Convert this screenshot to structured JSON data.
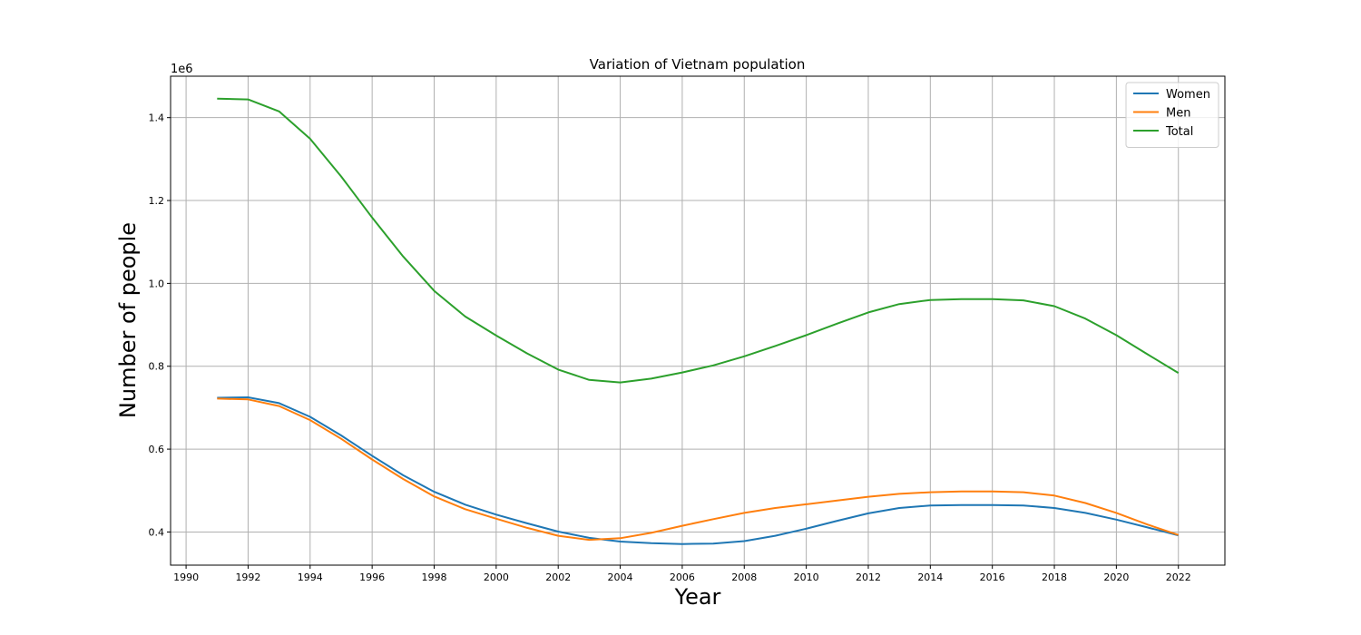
{
  "chart_data": {
    "type": "line",
    "title": "Variation of Vietnam population",
    "xlabel": "Year",
    "ylabel": "Number of people",
    "y_offset_label": "1e6",
    "xlim": [
      1989.5,
      2023.5
    ],
    "ylim": [
      320000,
      1500000
    ],
    "xticks": [
      1990,
      1992,
      1994,
      1996,
      1998,
      2000,
      2002,
      2004,
      2006,
      2008,
      2010,
      2012,
      2014,
      2016,
      2018,
      2020,
      2022
    ],
    "xtick_labels": [
      "1990",
      "1992",
      "1994",
      "1996",
      "1998",
      "2000",
      "2002",
      "2004",
      "2006",
      "2008",
      "2010",
      "2012",
      "2014",
      "2016",
      "2018",
      "2020",
      "2022"
    ],
    "yticks": [
      400000,
      600000,
      800000,
      1000000,
      1200000,
      1400000
    ],
    "ytick_labels": [
      "0.4",
      "0.6",
      "0.8",
      "1.0",
      "1.2",
      "1.4"
    ],
    "grid": true,
    "legend_position": "top-right",
    "x": [
      1991,
      1992,
      1993,
      1994,
      1995,
      1996,
      1997,
      1998,
      1999,
      2000,
      2001,
      2002,
      2003,
      2004,
      2005,
      2006,
      2007,
      2008,
      2009,
      2010,
      2011,
      2012,
      2013,
      2014,
      2015,
      2016,
      2017,
      2018,
      2019,
      2020,
      2021,
      2022
    ],
    "series": [
      {
        "name": "Women",
        "color": "#1f77b4",
        "values": [
          724000,
          725000,
          711000,
          678000,
          633000,
          584000,
          537000,
          497000,
          466000,
          442000,
          421000,
          401000,
          386000,
          377000,
          373000,
          371000,
          372000,
          378000,
          391000,
          408000,
          427000,
          445000,
          458000,
          464000,
          465000,
          465000,
          464000,
          458000,
          446000,
          430000,
          411000,
          392000
        ]
      },
      {
        "name": "Men",
        "color": "#ff7f0e",
        "values": [
          722000,
          720000,
          704000,
          670000,
          625000,
          575000,
          528000,
          486000,
          455000,
          432000,
          410000,
          391000,
          381000,
          385000,
          398000,
          415000,
          431000,
          446000,
          458000,
          467000,
          476000,
          485000,
          492000,
          496000,
          498000,
          498000,
          496000,
          488000,
          470000,
          446000,
          418000,
          393000
        ]
      },
      {
        "name": "Total",
        "color": "#2ca02c",
        "values": [
          1446000,
          1444000,
          1415000,
          1349000,
          1258000,
          1159000,
          1065000,
          982000,
          920000,
          874000,
          831000,
          792000,
          767000,
          761000,
          770000,
          785000,
          802000,
          824000,
          849000,
          875000,
          903000,
          930000,
          950000,
          960000,
          962000,
          962000,
          959000,
          945000,
          915000,
          875000,
          829000,
          784000
        ]
      }
    ]
  }
}
